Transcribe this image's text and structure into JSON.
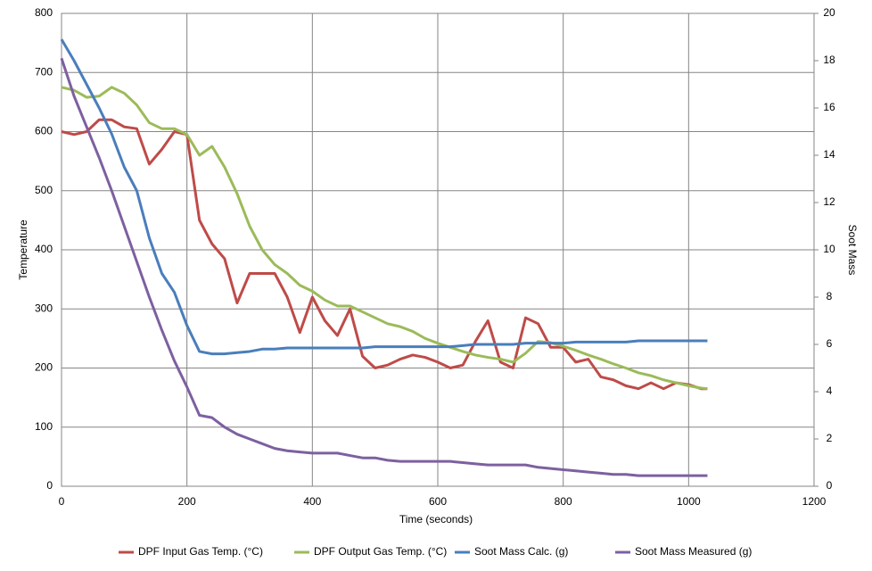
{
  "chart_data": {
    "type": "line",
    "x_label": "Time (seconds)",
    "y_label": "Temperature",
    "y2_label": "Soot Mass",
    "x": [
      0,
      20,
      40,
      60,
      80,
      100,
      120,
      140,
      160,
      180,
      200,
      220,
      240,
      260,
      280,
      300,
      320,
      340,
      360,
      380,
      400,
      420,
      440,
      460,
      480,
      500,
      520,
      540,
      560,
      580,
      600,
      620,
      640,
      660,
      680,
      700,
      720,
      740,
      760,
      780,
      800,
      820,
      840,
      860,
      880,
      900,
      920,
      940,
      960,
      980,
      1000,
      1020,
      1030
    ],
    "xlim": [
      0,
      1200
    ],
    "xticks": [
      0,
      200,
      400,
      600,
      800,
      1000,
      1200
    ],
    "ylim": [
      0,
      800
    ],
    "yticks": [
      0,
      100,
      200,
      300,
      400,
      500,
      600,
      700,
      800
    ],
    "y2lim": [
      0,
      20
    ],
    "y2ticks": [
      0,
      2,
      4,
      6,
      8,
      10,
      12,
      14,
      16,
      18,
      20
    ],
    "grid": true,
    "legend": "bottom",
    "series": [
      {
        "name": "DPF Input Gas Temp. (°C)",
        "color": "#be4b48",
        "values": [
          600,
          595,
          600,
          620,
          620,
          608,
          605,
          545,
          570,
          600,
          595,
          450,
          410,
          385,
          310,
          360,
          360,
          360,
          320,
          260,
          320,
          280,
          255,
          300,
          220,
          200,
          205,
          215,
          222,
          218,
          210,
          200,
          205,
          245,
          280,
          210,
          200,
          285,
          275,
          235,
          235,
          210,
          215,
          185,
          180,
          170,
          165,
          175,
          165,
          175,
          172,
          165,
          165
        ]
      },
      {
        "name": "DPF Output Gas Temp. (°C)",
        "color": "#9bbb59",
        "values": [
          675,
          670,
          658,
          660,
          675,
          665,
          645,
          615,
          605,
          605,
          595,
          560,
          575,
          540,
          495,
          440,
          400,
          375,
          360,
          340,
          330,
          315,
          305,
          305,
          295,
          285,
          275,
          270,
          262,
          250,
          242,
          235,
          228,
          222,
          218,
          215,
          210,
          225,
          245,
          243,
          237,
          230,
          222,
          215,
          207,
          200,
          192,
          187,
          180,
          175,
          170,
          166,
          165
        ]
      },
      {
        "name": "Soot Mass Calc. (g)",
        "color": "#4a7ebb",
        "axis": "y2",
        "values": [
          18.9,
          18.0,
          17.0,
          16.0,
          14.9,
          13.5,
          12.5,
          10.5,
          9.0,
          8.2,
          6.8,
          5.7,
          5.6,
          5.6,
          5.65,
          5.7,
          5.8,
          5.8,
          5.85,
          5.85,
          5.85,
          5.85,
          5.85,
          5.85,
          5.85,
          5.9,
          5.9,
          5.9,
          5.9,
          5.9,
          5.9,
          5.9,
          5.95,
          6.0,
          6.0,
          6.0,
          6.0,
          6.05,
          6.05,
          6.05,
          6.05,
          6.1,
          6.1,
          6.1,
          6.1,
          6.1,
          6.15,
          6.15,
          6.15,
          6.15,
          6.15,
          6.15,
          6.15
        ]
      },
      {
        "name": "Soot Mass Measured (g)",
        "color": "#7d60a0",
        "axis": "y2",
        "values": [
          18.1,
          16.5,
          15.2,
          13.9,
          12.5,
          11.0,
          9.5,
          8.0,
          6.6,
          5.3,
          4.2,
          3.0,
          2.9,
          2.5,
          2.2,
          2.0,
          1.8,
          1.6,
          1.5,
          1.45,
          1.4,
          1.4,
          1.4,
          1.3,
          1.2,
          1.2,
          1.1,
          1.05,
          1.05,
          1.05,
          1.05,
          1.05,
          1.0,
          0.95,
          0.9,
          0.9,
          0.9,
          0.9,
          0.8,
          0.75,
          0.7,
          0.65,
          0.6,
          0.55,
          0.5,
          0.5,
          0.45,
          0.45,
          0.45,
          0.45,
          0.45,
          0.45,
          0.45
        ]
      }
    ]
  }
}
